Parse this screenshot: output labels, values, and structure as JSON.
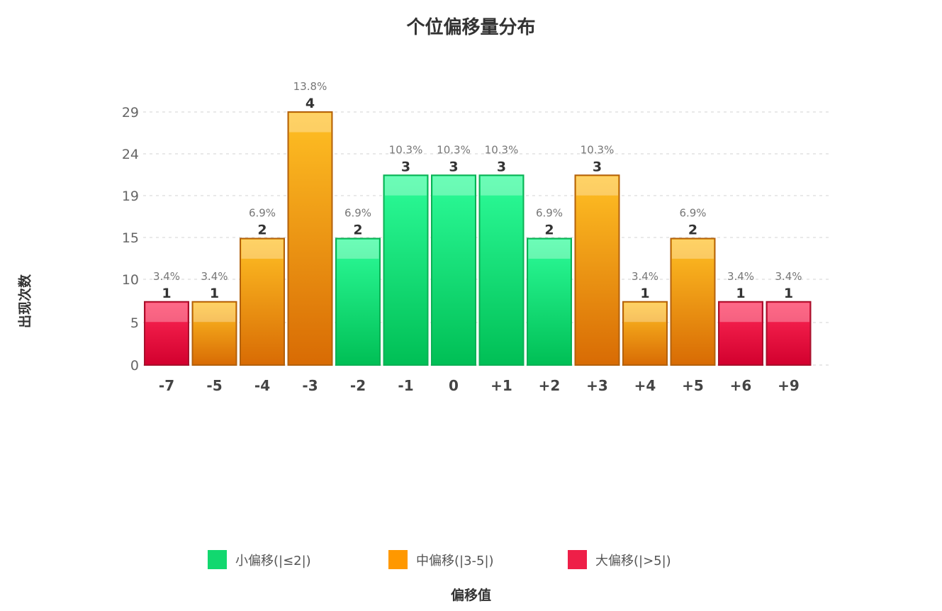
{
  "chart_data": {
    "type": "bar",
    "title": "个位偏移量分布",
    "xlabel": "偏移值",
    "ylabel": "出现次数",
    "categories": [
      "-7",
      "-5",
      "-4",
      "-3",
      "-2",
      "-1",
      "0",
      "+1",
      "+2",
      "+3",
      "+4",
      "+5",
      "+6",
      "+9"
    ],
    "values": [
      1,
      1,
      2,
      4,
      2,
      3,
      3,
      3,
      2,
      3,
      1,
      2,
      1,
      1
    ],
    "percent_labels": [
      "3.4%",
      "3.4%",
      "6.9%",
      "13.8%",
      "6.9%",
      "10.3%",
      "10.3%",
      "10.3%",
      "6.9%",
      "10.3%",
      "3.4%",
      "6.9%",
      "3.4%",
      "3.4%"
    ],
    "groups": [
      "large",
      "medium",
      "medium",
      "medium",
      "small",
      "small",
      "small",
      "small",
      "small",
      "medium",
      "medium",
      "medium",
      "large",
      "large"
    ],
    "y_tick_labels": [
      "0",
      "5",
      "10",
      "15",
      "19",
      "24",
      "29"
    ],
    "ylim": [
      0,
      4
    ],
    "grid": true,
    "legend_position": "bottom",
    "legend": [
      {
        "key": "small",
        "label": "小偏移(|≤2|)",
        "color": "#12d86f"
      },
      {
        "key": "medium",
        "label": "中偏移(|3-5|)",
        "color": "#ff9800"
      },
      {
        "key": "large",
        "label": "大偏移(|>5|)",
        "color": "#ee1f48"
      }
    ]
  }
}
